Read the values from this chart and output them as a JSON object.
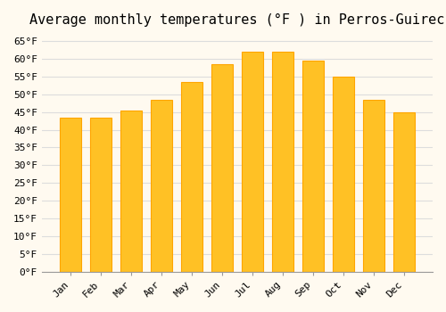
{
  "title": "Average monthly temperatures (°F ) in Perros-Guirec",
  "months": [
    "Jan",
    "Feb",
    "Mar",
    "Apr",
    "May",
    "Jun",
    "Jul",
    "Aug",
    "Sep",
    "Oct",
    "Nov",
    "Dec"
  ],
  "values": [
    43.5,
    43.5,
    45.5,
    48.5,
    53.5,
    58.5,
    62,
    62,
    59.5,
    55,
    48.5,
    45
  ],
  "bar_color_face": "#FFC125",
  "bar_color_edge": "#FFA500",
  "background_color": "#FFFAF0",
  "grid_color": "#DDDDDD",
  "title_fontsize": 11,
  "tick_fontsize": 8,
  "ylim": [
    0,
    67
  ],
  "yticks": [
    0,
    5,
    10,
    15,
    20,
    25,
    30,
    35,
    40,
    45,
    50,
    55,
    60,
    65
  ],
  "ylabel_fmt": "°F",
  "font_family": "monospace"
}
